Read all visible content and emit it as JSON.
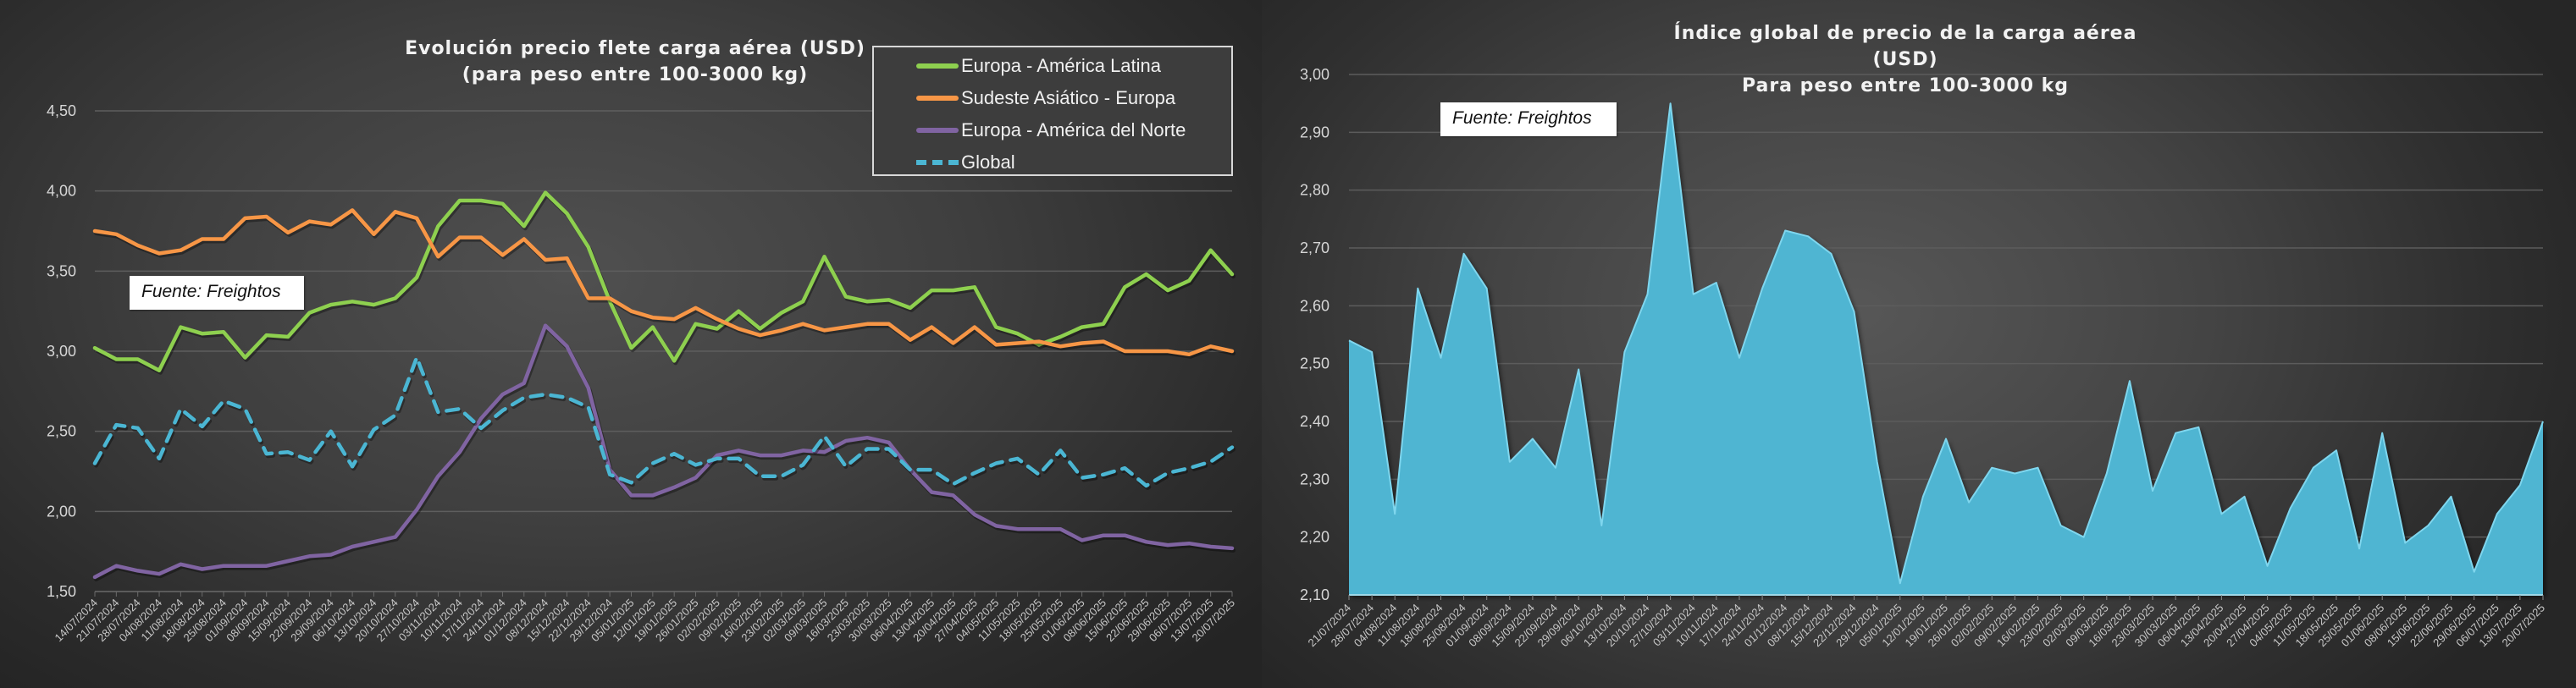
{
  "colors": {
    "europa_latam": "#8ed04f",
    "sudeste_europa": "#f79646",
    "europa_norte": "#8064a2",
    "global": "#4bb6d3",
    "area_fill": "#4fb5d2"
  },
  "chart_data": [
    {
      "type": "line",
      "title": "Evolución precio flete carga  aérea (USD)",
      "subtitle": "(para peso entre 100-3000 kg)",
      "source": "Fuente: Freightos",
      "xlabel": "",
      "ylabel": "",
      "ylim": [
        1.5,
        4.5
      ],
      "yticks": [
        "1,50",
        "2,00",
        "2,50",
        "3,00",
        "3,50",
        "4,00",
        "4,50"
      ],
      "ytick_values": [
        1.5,
        2.0,
        2.5,
        3.0,
        3.5,
        4.0,
        4.5
      ],
      "grid": true,
      "legend_position": "top-right",
      "x": [
        "14/07/2024",
        "21/07/2024",
        "28/07/2024",
        "04/08/2024",
        "11/08/2024",
        "18/08/2024",
        "25/08/2024",
        "01/09/2024",
        "08/09/2024",
        "15/09/2024",
        "22/09/2024",
        "29/09/2024",
        "06/10/2024",
        "13/10/2024",
        "20/10/2024",
        "27/10/2024",
        "03/11/2024",
        "10/11/2024",
        "17/11/2024",
        "24/11/2024",
        "01/12/2024",
        "08/12/2024",
        "15/12/2024",
        "22/12/2024",
        "29/12/2024",
        "05/01/2025",
        "12/01/2025",
        "19/01/2025",
        "26/01/2025",
        "02/02/2025",
        "09/02/2025",
        "16/02/2025",
        "23/02/2025",
        "02/03/2025",
        "09/03/2025",
        "16/03/2025",
        "23/03/2025",
        "30/03/2025",
        "06/04/2025",
        "13/04/2025",
        "20/04/2025",
        "27/04/2025",
        "04/05/2025",
        "11/05/2025",
        "18/05/2025",
        "25/05/2025",
        "01/06/2025",
        "08/06/2025",
        "15/06/2025",
        "22/06/2025",
        "29/06/2025",
        "06/07/2025",
        "13/07/2025",
        "20/07/2025"
      ],
      "series": [
        {
          "name": "Europa - América Latina",
          "style": "solid",
          "values": [
            3.02,
            2.95,
            2.95,
            2.88,
            3.15,
            3.11,
            3.12,
            2.96,
            3.1,
            3.09,
            3.24,
            3.29,
            3.31,
            3.29,
            3.33,
            3.46,
            3.78,
            3.94,
            3.94,
            3.92,
            3.78,
            3.99,
            3.86,
            3.65,
            3.31,
            3.02,
            3.15,
            2.94,
            3.17,
            3.14,
            3.25,
            3.14,
            3.24,
            3.31,
            3.59,
            3.34,
            3.31,
            3.32,
            3.27,
            3.38,
            3.38,
            3.4,
            3.15,
            3.11,
            3.04,
            3.09,
            3.15,
            3.17,
            3.4,
            3.48,
            3.38,
            3.44,
            3.63,
            3.48
          ]
        },
        {
          "name": "Sudeste Asiático - Europa",
          "style": "solid",
          "values": [
            3.75,
            3.73,
            3.66,
            3.61,
            3.63,
            3.7,
            3.7,
            3.83,
            3.84,
            3.74,
            3.81,
            3.79,
            3.88,
            3.73,
            3.87,
            3.83,
            3.59,
            3.71,
            3.71,
            3.6,
            3.7,
            3.57,
            3.58,
            3.33,
            3.33,
            3.25,
            3.21,
            3.2,
            3.27,
            3.2,
            3.14,
            3.1,
            3.13,
            3.17,
            3.13,
            3.15,
            3.17,
            3.17,
            3.07,
            3.15,
            3.05,
            3.15,
            3.04,
            3.05,
            3.06,
            3.03,
            3.05,
            3.06,
            3.0,
            3.0,
            3.0,
            2.98,
            3.03,
            3.0
          ]
        },
        {
          "name": "Europa - América del Norte",
          "style": "solid",
          "values": [
            1.59,
            1.66,
            1.63,
            1.61,
            1.67,
            1.64,
            1.66,
            1.66,
            1.66,
            1.69,
            1.72,
            1.73,
            1.78,
            1.81,
            1.84,
            2.01,
            2.22,
            2.37,
            2.58,
            2.73,
            2.8,
            3.16,
            3.03,
            2.77,
            2.26,
            2.1,
            2.1,
            2.15,
            2.21,
            2.35,
            2.38,
            2.35,
            2.35,
            2.38,
            2.37,
            2.44,
            2.46,
            2.43,
            2.26,
            2.12,
            2.1,
            1.98,
            1.91,
            1.89,
            1.89,
            1.89,
            1.82,
            1.85,
            1.85,
            1.81,
            1.79,
            1.8,
            1.78,
            1.77
          ]
        },
        {
          "name": "Global",
          "style": "dashed",
          "values": [
            2.3,
            2.54,
            2.52,
            2.33,
            2.64,
            2.53,
            2.69,
            2.64,
            2.36,
            2.37,
            2.32,
            2.5,
            2.28,
            2.51,
            2.6,
            2.96,
            2.62,
            2.64,
            2.52,
            2.63,
            2.71,
            2.73,
            2.71,
            2.65,
            2.23,
            2.18,
            2.3,
            2.36,
            2.29,
            2.33,
            2.33,
            2.22,
            2.22,
            2.29,
            2.47,
            2.28,
            2.39,
            2.39,
            2.26,
            2.26,
            2.17,
            2.24,
            2.3,
            2.33,
            2.23,
            2.38,
            2.21,
            2.23,
            2.27,
            2.16,
            2.24,
            2.27,
            2.31,
            2.4
          ]
        }
      ]
    },
    {
      "type": "area",
      "title": "Índice global de precio de la carga aérea (USD)",
      "subtitle": "Para peso entre 100-3000 kg",
      "source": "Fuente: Freightos",
      "xlabel": "",
      "ylabel": "",
      "ylim": [
        2.1,
        3.0
      ],
      "yticks": [
        "2,10",
        "2,20",
        "2,30",
        "2,40",
        "2,50",
        "2,60",
        "2,70",
        "2,80",
        "2,90",
        "3,00"
      ],
      "ytick_values": [
        2.1,
        2.2,
        2.3,
        2.4,
        2.5,
        2.6,
        2.7,
        2.8,
        2.9,
        3.0
      ],
      "grid": true,
      "x": [
        "21/07/2024",
        "28/07/2024",
        "04/08/2024",
        "11/08/2024",
        "18/08/2024",
        "25/08/2024",
        "01/09/2024",
        "08/09/2024",
        "15/09/2024",
        "22/09/2024",
        "29/09/2024",
        "06/10/2024",
        "13/10/2024",
        "20/10/2024",
        "27/10/2024",
        "03/11/2024",
        "10/11/2024",
        "17/11/2024",
        "24/11/2024",
        "01/12/2024",
        "08/12/2024",
        "15/12/2024",
        "22/12/2024",
        "29/12/2024",
        "05/01/2025",
        "12/01/2025",
        "19/01/2025",
        "26/01/2025",
        "02/02/2025",
        "09/02/2025",
        "16/02/2025",
        "23/02/2025",
        "02/03/2025",
        "09/03/2025",
        "16/03/2025",
        "23/03/2025",
        "30/03/2025",
        "06/04/2025",
        "13/04/2025",
        "20/04/2025",
        "27/04/2025",
        "04/05/2025",
        "11/05/2025",
        "18/05/2025",
        "25/05/2025",
        "01/06/2025",
        "08/06/2025",
        "15/06/2025",
        "22/06/2025",
        "29/06/2025",
        "06/07/2025",
        "13/07/2025",
        "20/07/2025"
      ],
      "series": [
        {
          "name": "Global",
          "values": [
            2.54,
            2.52,
            2.24,
            2.63,
            2.51,
            2.69,
            2.63,
            2.33,
            2.37,
            2.32,
            2.49,
            2.22,
            2.52,
            2.62,
            2.95,
            2.62,
            2.64,
            2.51,
            2.63,
            2.73,
            2.72,
            2.69,
            2.59,
            2.33,
            2.12,
            2.27,
            2.37,
            2.26,
            2.32,
            2.31,
            2.32,
            2.22,
            2.2,
            2.31,
            2.47,
            2.28,
            2.38,
            2.39,
            2.24,
            2.27,
            2.15,
            2.25,
            2.32,
            2.35,
            2.18,
            2.38,
            2.19,
            2.22,
            2.27,
            2.14,
            2.24,
            2.29,
            2.4
          ]
        }
      ]
    }
  ]
}
